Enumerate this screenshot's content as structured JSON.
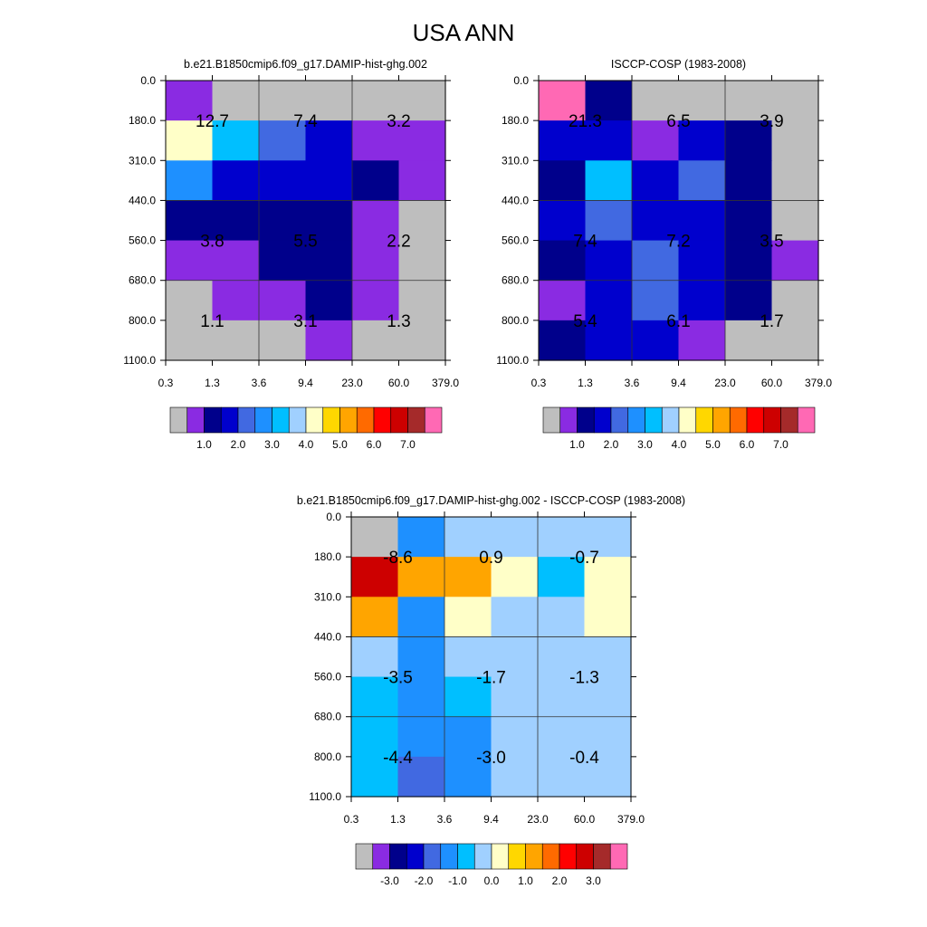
{
  "page_title": "USA ANN",
  "x_ticks": [
    "0.3",
    "1.3",
    "3.6",
    "9.4",
    "23.0",
    "60.0",
    "379.0"
  ],
  "y_ticks": [
    "0.0",
    "180.0",
    "310.0",
    "440.0",
    "560.0",
    "680.0",
    "800.0",
    "1100.0"
  ],
  "colors": {
    "gray": "#bebebe",
    "purple": "#8a2be2",
    "navy": "#00008b",
    "blue": "#0000cd",
    "royal": "#4169e1",
    "dodger": "#1e90ff",
    "sky": "#00bfff",
    "lightblue": "#a0d0ff",
    "cream": "#ffffc8",
    "gold": "#ffd700",
    "orange": "#ffa500",
    "darkorange": "#ff6a00",
    "red": "#ff0000",
    "darkred": "#cd0000",
    "brown": "#a52a2a",
    "pink": "#ff69b4"
  },
  "chart_data": [
    {
      "type": "heatmap",
      "title": "b.e21.B1850cmip6.f09_g17.DAMIP-hist-ghg.002",
      "xlabel": "",
      "ylabel": "",
      "cells": [
        [
          "purple",
          "gray",
          "gray",
          "gray",
          "gray",
          "gray"
        ],
        [
          "cream",
          "sky",
          "royal",
          "blue",
          "purple",
          "purple"
        ],
        [
          "dodger",
          "blue",
          "blue",
          "blue",
          "navy",
          "purple"
        ],
        [
          "navy",
          "navy",
          "navy",
          "navy",
          "purple",
          "gray"
        ],
        [
          "purple",
          "purple",
          "navy",
          "navy",
          "purple",
          "gray"
        ],
        [
          "gray",
          "purple",
          "purple",
          "navy",
          "purple",
          "gray"
        ],
        [
          "gray",
          "gray",
          "gray",
          "purple",
          "gray",
          "gray"
        ]
      ],
      "annotations": [
        [
          "12.7",
          "7.4",
          "3.2"
        ],
        [
          "3.8",
          "5.5",
          "2.2"
        ],
        [
          "1.1",
          "3.1",
          "1.3"
        ]
      ],
      "colorbar": {
        "colors": [
          "gray",
          "purple",
          "navy",
          "blue",
          "royal",
          "dodger",
          "sky",
          "lightblue",
          "cream",
          "gold",
          "orange",
          "darkorange",
          "red",
          "darkred",
          "brown",
          "pink"
        ],
        "labels": [
          "1.0",
          "2.0",
          "3.0",
          "4.0",
          "5.0",
          "6.0",
          "7.0"
        ]
      }
    },
    {
      "type": "heatmap",
      "title": "ISCCP-COSP (1983-2008)",
      "xlabel": "",
      "ylabel": "",
      "cells": [
        [
          "pink",
          "navy",
          "gray",
          "gray",
          "gray",
          "gray"
        ],
        [
          "blue",
          "blue",
          "purple",
          "blue",
          "navy",
          "gray"
        ],
        [
          "navy",
          "sky",
          "blue",
          "royal",
          "navy",
          "gray"
        ],
        [
          "blue",
          "royal",
          "blue",
          "blue",
          "navy",
          "gray"
        ],
        [
          "navy",
          "blue",
          "royal",
          "blue",
          "navy",
          "purple"
        ],
        [
          "purple",
          "blue",
          "royal",
          "blue",
          "navy",
          "gray"
        ],
        [
          "navy",
          "blue",
          "blue",
          "purple",
          "gray",
          "gray"
        ]
      ],
      "annotations": [
        [
          "21.3",
          "6.5",
          "3.9"
        ],
        [
          "7.4",
          "7.2",
          "3.5"
        ],
        [
          "5.4",
          "6.1",
          "1.7"
        ]
      ],
      "colorbar": {
        "colors": [
          "gray",
          "purple",
          "navy",
          "blue",
          "royal",
          "dodger",
          "sky",
          "lightblue",
          "cream",
          "gold",
          "orange",
          "darkorange",
          "red",
          "darkred",
          "brown",
          "pink"
        ],
        "labels": [
          "1.0",
          "2.0",
          "3.0",
          "4.0",
          "5.0",
          "6.0",
          "7.0"
        ]
      }
    },
    {
      "type": "heatmap",
      "title": "b.e21.B1850cmip6.f09_g17.DAMIP-hist-ghg.002 - ISCCP-COSP (1983-2008)",
      "xlabel": "",
      "ylabel": "",
      "cells": [
        [
          "gray",
          "dodger",
          "lightblue",
          "lightblue",
          "lightblue",
          "lightblue"
        ],
        [
          "darkred",
          "orange",
          "orange",
          "cream",
          "sky",
          "cream"
        ],
        [
          "orange",
          "dodger",
          "cream",
          "lightblue",
          "lightblue",
          "cream"
        ],
        [
          "lightblue",
          "dodger",
          "lightblue",
          "lightblue",
          "lightblue",
          "lightblue"
        ],
        [
          "sky",
          "dodger",
          "sky",
          "lightblue",
          "lightblue",
          "lightblue"
        ],
        [
          "sky",
          "dodger",
          "dodger",
          "lightblue",
          "lightblue",
          "lightblue"
        ],
        [
          "sky",
          "royal",
          "dodger",
          "lightblue",
          "lightblue",
          "lightblue"
        ]
      ],
      "annotations": [
        [
          "-8.6",
          "0.9",
          "-0.7"
        ],
        [
          "-3.5",
          "-1.7",
          "-1.3"
        ],
        [
          "-4.4",
          "-3.0",
          "-0.4"
        ]
      ],
      "colorbar": {
        "colors": [
          "gray",
          "purple",
          "navy",
          "blue",
          "royal",
          "dodger",
          "sky",
          "lightblue",
          "cream",
          "gold",
          "orange",
          "darkorange",
          "red",
          "darkred",
          "brown",
          "pink"
        ],
        "labels": [
          "-3.0",
          "-2.0",
          "-1.0",
          "0.0",
          "1.0",
          "2.0",
          "3.0"
        ]
      }
    }
  ]
}
